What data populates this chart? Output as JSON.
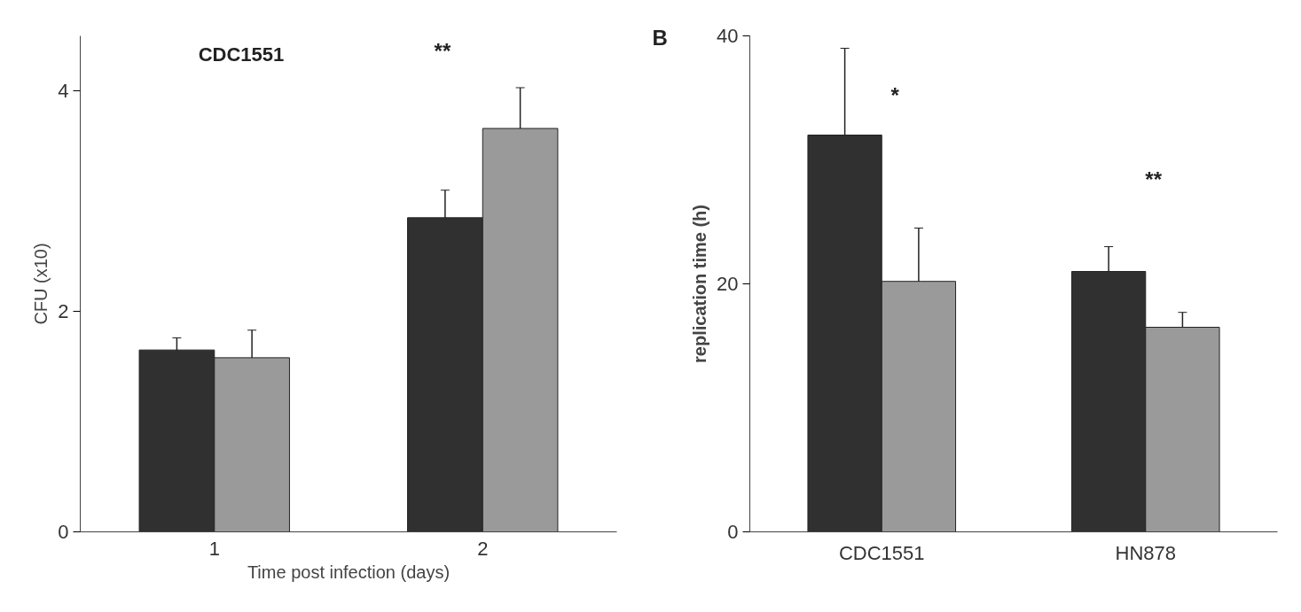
{
  "chart_data": [
    {
      "type": "bar",
      "title": "CDC1551",
      "xlabel": "Time post infection (days)",
      "ylabel": "CFU (x10)",
      "categories": [
        "1",
        "2"
      ],
      "series": [
        {
          "color": "#303030",
          "values": [
            1.65,
            2.85
          ],
          "errors": [
            0.11,
            0.25
          ]
        },
        {
          "color": "#9a9a9a",
          "values": [
            1.58,
            3.66
          ],
          "errors": [
            0.25,
            0.37
          ]
        }
      ],
      "ylim": [
        0,
        4.5
      ],
      "yticks": [
        0,
        2,
        4
      ],
      "grid": false,
      "annotations": [
        "**"
      ]
    },
    {
      "type": "bar",
      "ylabel": "replication time (h)",
      "categories": [
        "CDC1551",
        "HN878"
      ],
      "series": [
        {
          "color": "#303030",
          "values": [
            32.0,
            21.0
          ],
          "errors": [
            7.0,
            2.0
          ]
        },
        {
          "color": "#9a9a9a",
          "values": [
            20.2,
            16.5
          ],
          "errors": [
            4.3,
            1.2
          ]
        }
      ],
      "ylim": [
        0,
        40
      ],
      "yticks": [
        0,
        20,
        40
      ],
      "grid": false,
      "annotations": [
        "B",
        "*",
        "**"
      ]
    }
  ]
}
